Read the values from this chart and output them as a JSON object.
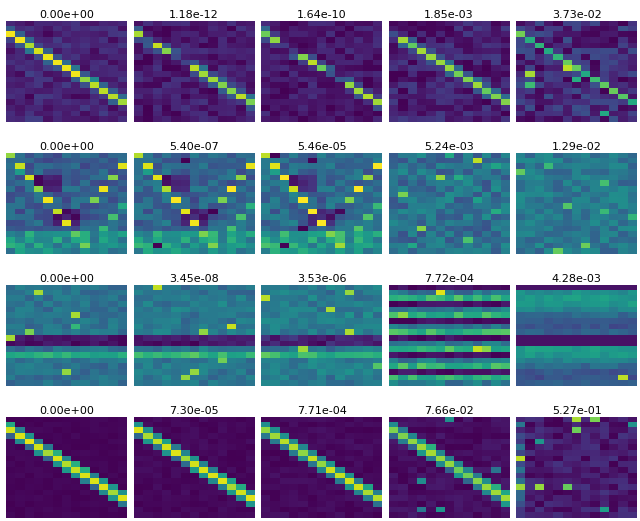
{
  "labels": [
    [
      "0.00e+00",
      "1.18e-12",
      "1.64e-10",
      "1.85e-03",
      "3.73e-02"
    ],
    [
      "0.00e+00",
      "5.40e-07",
      "5.46e-05",
      "5.24e-03",
      "1.29e-02"
    ],
    [
      "0.00e+00",
      "3.45e-08",
      "3.53e-06",
      "7.72e-04",
      "4.28e-03"
    ],
    [
      "0.00e+00",
      "7.30e-05",
      "7.71e-04",
      "7.66e-02",
      "5.27e-01"
    ]
  ],
  "cmap": "viridis",
  "nrows": 4,
  "ncols": 5,
  "nrows_mat": 18,
  "ncols_mat": 13,
  "figsize": [
    6.4,
    5.21
  ],
  "dpi": 100,
  "background_color": "#ffffff",
  "label_fontsize": 8.0,
  "hspace": 0.3,
  "wspace": 0.06
}
